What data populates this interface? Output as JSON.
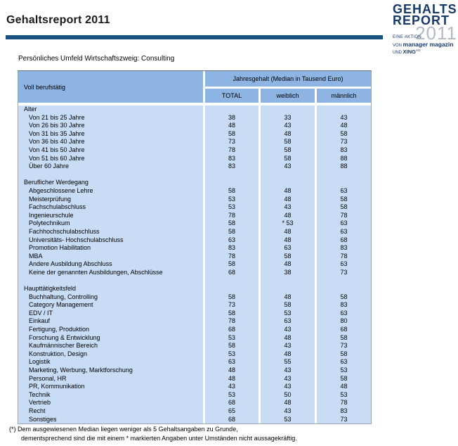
{
  "page": {
    "title": "Gehaltsreport 2011",
    "subtitle": "Persönliches Umfeld Wirtschaftszweig: Consulting"
  },
  "logo": {
    "word1": "GEHALTS",
    "word2": "REPORT",
    "year": "2011",
    "tagline1": "EINE AKTION",
    "tagline2_prefix": "VON ",
    "tagline2_brand": "manager magazin",
    "tagline3_prefix": "UND ",
    "tagline3_brand": "XING",
    "tagline3_sup": "AG"
  },
  "colors": {
    "bar_navy": "#1B5181",
    "logo_navy": "#16396B",
    "logo_year_gray": "#B5BAC3",
    "header_blue": "#8DB4E2",
    "body_blue": "#C9DCF5"
  },
  "table": {
    "row_header": "Voll berufstätig",
    "col_group_header": "Jahresgehalt (Median in Tausend Euro)",
    "columns": [
      "TOTAL",
      "weiblich",
      "männlich"
    ],
    "sections": [
      {
        "title": "Alter",
        "rows": [
          {
            "label": "Von 21 bis 25 Jahre",
            "values": [
              "38",
              "33",
              "43"
            ]
          },
          {
            "label": "Von 26 bis 30 Jahre",
            "values": [
              "48",
              "43",
              "48"
            ]
          },
          {
            "label": "Von 31 bis 35 Jahre",
            "values": [
              "58",
              "48",
              "58"
            ]
          },
          {
            "label": "Von 36 bis 40 Jahre",
            "values": [
              "73",
              "58",
              "73"
            ]
          },
          {
            "label": "Von 41 bis 50 Jahre",
            "values": [
              "78",
              "58",
              "83"
            ]
          },
          {
            "label": "Von 51 bis 60 Jahre",
            "values": [
              "83",
              "58",
              "88"
            ]
          },
          {
            "label": "Über 60 Jahre",
            "values": [
              "83",
              "43",
              "88"
            ]
          }
        ]
      },
      {
        "title": "Beruflicher Werdegang",
        "rows": [
          {
            "label": "Abgeschlossene Lehre",
            "values": [
              "58",
              "48",
              "63"
            ]
          },
          {
            "label": "Meisterprüfung",
            "values": [
              "53",
              "48",
              "58"
            ]
          },
          {
            "label": "Fachschulabschluss",
            "values": [
              "53",
              "43",
              "58"
            ]
          },
          {
            "label": "Ingenieurschule",
            "values": [
              "78",
              "48",
              "78"
            ]
          },
          {
            "label": "Polytechnikum",
            "values": [
              "58",
              "* 53",
              "63"
            ]
          },
          {
            "label": "Fachhochschulabschluss",
            "values": [
              "58",
              "48",
              "63"
            ]
          },
          {
            "label": "Universitäts- Hochschulabschluss",
            "values": [
              "63",
              "48",
              "68"
            ]
          },
          {
            "label": "Promotion Habilitation",
            "values": [
              "83",
              "63",
              "83"
            ]
          },
          {
            "label": "MBA",
            "values": [
              "78",
              "58",
              "78"
            ]
          },
          {
            "label": "Andere Ausbildung Abschluss",
            "values": [
              "58",
              "48",
              "63"
            ]
          },
          {
            "label": "Keine der genannten Ausbildungen, Abschlüsse",
            "values": [
              "68",
              "38",
              "73"
            ]
          }
        ]
      },
      {
        "title": "Haupttätigkeitsfeld",
        "rows": [
          {
            "label": "Buchhaltung, Controlling",
            "values": [
              "58",
              "48",
              "58"
            ]
          },
          {
            "label": "Category Management",
            "values": [
              "73",
              "58",
              "83"
            ]
          },
          {
            "label": "EDV / IT",
            "values": [
              "58",
              "53",
              "63"
            ]
          },
          {
            "label": "Einkauf",
            "values": [
              "78",
              "63",
              "80"
            ]
          },
          {
            "label": "Fertigung, Produktion",
            "values": [
              "68",
              "43",
              "68"
            ]
          },
          {
            "label": "Forschung & Entwicklung",
            "values": [
              "53",
              "48",
              "58"
            ]
          },
          {
            "label": "Kaufmännischer Bereich",
            "values": [
              "58",
              "43",
              "73"
            ]
          },
          {
            "label": "Konstruktion, Design",
            "values": [
              "53",
              "48",
              "58"
            ]
          },
          {
            "label": "Logistik",
            "values": [
              "63",
              "55",
              "63"
            ]
          },
          {
            "label": "Marketing, Werbung, Marktforschung",
            "values": [
              "48",
              "43",
              "53"
            ]
          },
          {
            "label": "Personal, HR",
            "values": [
              "48",
              "43",
              "58"
            ]
          },
          {
            "label": "PR, Kommunikation",
            "values": [
              "43",
              "43",
              "48"
            ]
          },
          {
            "label": "Technik",
            "values": [
              "53",
              "50",
              "53"
            ]
          },
          {
            "label": "Vertrieb",
            "values": [
              "68",
              "48",
              "78"
            ]
          },
          {
            "label": "Recht",
            "values": [
              "65",
              "43",
              "83"
            ]
          },
          {
            "label": "Sonstiges",
            "values": [
              "68",
              "53",
              "73"
            ]
          }
        ]
      }
    ]
  },
  "footnote": {
    "line1": "(*) Dem ausgewiesenen Median liegen weniger als 5 Gehaltsangaben zu Grunde,",
    "line2": "dementsprechend sind die mit einem * markierten Angaben unter Umständen nicht aussagekräftig."
  }
}
